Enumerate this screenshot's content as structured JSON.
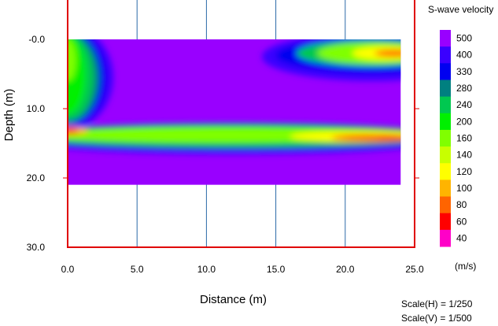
{
  "chart_data": {
    "type": "heatmap",
    "xlabel": "Distance (m)",
    "ylabel": "Depth (m)",
    "xlim": [
      0,
      25
    ],
    "ylim": [
      0,
      30
    ],
    "y_inverted": true,
    "x_ticks": [
      "0.0",
      "5.0",
      "10.0",
      "15.0",
      "20.0",
      "25.0"
    ],
    "x_tick_values": [
      0,
      5,
      10,
      15,
      20,
      25
    ],
    "y_ticks": [
      "-0.0",
      "10.0",
      "20.0",
      "30.0"
    ],
    "y_tick_values": [
      0,
      10,
      20,
      30
    ],
    "grid": true,
    "data_extent": {
      "x": [
        0,
        24
      ],
      "depth": [
        0,
        21
      ]
    },
    "legend": {
      "title": "S-wave velocity",
      "unit": "(m/s)",
      "placement": "right",
      "labels": [
        "500",
        "400",
        "330",
        "280",
        "240",
        "200",
        "160",
        "140",
        "120",
        "100",
        "80",
        "60",
        "40"
      ],
      "values": [
        500,
        400,
        330,
        280,
        240,
        200,
        160,
        140,
        120,
        100,
        80,
        60,
        40
      ],
      "colors": [
        "#9900ff",
        "#3a00ff",
        "#0000f0",
        "#008080",
        "#00c850",
        "#00f000",
        "#80ff00",
        "#c8ff00",
        "#ffff00",
        "#ffb400",
        "#ff6400",
        "#ff0000",
        "#ff00c8"
      ]
    },
    "model": {
      "background_velocity": 500,
      "features": [
        {
          "name": "near-surface low-velocity zone",
          "x": [
            0,
            3
          ],
          "depth": [
            0,
            11
          ],
          "min_velocity": 200
        },
        {
          "name": "shallow low-velocity wedge",
          "x": [
            15,
            24
          ],
          "depth": [
            0,
            4
          ],
          "min_velocity": 80
        },
        {
          "name": "low-velocity layer",
          "x": [
            0,
            24
          ],
          "depth": [
            12,
            15.5
          ],
          "min_velocity": 60
        }
      ]
    }
  },
  "scale_notes": {
    "horizontal": "Scale(H) = 1/250",
    "vertical": "Scale(V) = 1/500"
  }
}
